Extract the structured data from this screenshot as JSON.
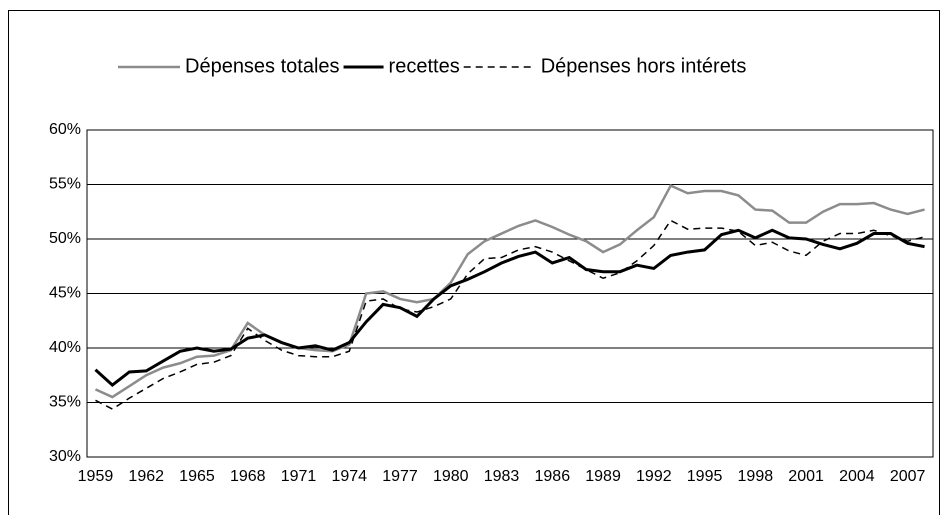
{
  "chart_data": {
    "type": "line",
    "categories": [
      "1959",
      null,
      null,
      "1962",
      null,
      null,
      "1965",
      null,
      null,
      "1968",
      null,
      null,
      "1971",
      null,
      null,
      "1974",
      null,
      null,
      "1977",
      null,
      null,
      "1980",
      null,
      null,
      "1983",
      null,
      null,
      "1986",
      null,
      null,
      "1989",
      null,
      null,
      "1992",
      null,
      null,
      "1995",
      null,
      null,
      "1998",
      null,
      null,
      "2001",
      null,
      null,
      "2004",
      null,
      null,
      "2007",
      null
    ],
    "series": [
      {
        "name": "Dépenses totales",
        "color": "#8c8c8c",
        "line_style": "solid",
        "values": [
          36.2,
          35.5,
          36.5,
          37.5,
          38.2,
          38.6,
          39.2,
          39.3,
          39.8,
          42.3,
          41.2,
          40.5,
          40.0,
          39.8,
          39.7,
          40.3,
          45.0,
          45.2,
          44.5,
          44.2,
          44.5,
          46.0,
          48.6,
          49.8,
          50.5,
          51.2,
          51.7,
          51.1,
          50.4,
          49.8,
          48.8,
          49.5,
          50.8,
          52.0,
          54.9,
          54.2,
          54.4,
          54.4,
          54.0,
          52.7,
          52.6,
          51.5,
          51.5,
          52.5,
          53.2,
          53.2,
          53.3,
          52.7,
          52.3,
          52.7
        ]
      },
      {
        "name": "recettes",
        "color": "#000000",
        "line_style": "solid",
        "values": [
          38.0,
          36.6,
          37.8,
          37.9,
          38.8,
          39.7,
          40.0,
          39.7,
          39.9,
          40.9,
          41.2,
          40.5,
          40.0,
          40.2,
          39.8,
          40.5,
          42.4,
          44.0,
          43.7,
          42.9,
          44.5,
          45.7,
          46.3,
          47.0,
          47.8,
          48.4,
          48.8,
          47.8,
          48.3,
          47.2,
          47.0,
          47.0,
          47.6,
          47.3,
          48.5,
          48.8,
          49.0,
          50.4,
          50.8,
          50.1,
          50.8,
          50.1,
          50.0,
          49.5,
          49.1,
          49.6,
          50.5,
          50.5,
          49.6,
          49.3
        ]
      },
      {
        "name": "Dépenses hors intérets",
        "color": "#000000",
        "line_style": "dashed",
        "values": [
          35.2,
          34.4,
          35.4,
          36.3,
          37.2,
          37.8,
          38.5,
          38.7,
          39.3,
          41.8,
          40.7,
          39.8,
          39.3,
          39.2,
          39.2,
          39.7,
          44.3,
          44.5,
          43.6,
          43.3,
          43.8,
          44.5,
          46.8,
          48.2,
          48.3,
          49.0,
          49.3,
          48.8,
          48.0,
          47.2,
          46.4,
          46.9,
          48.0,
          49.4,
          51.7,
          50.9,
          51.0,
          51.0,
          50.7,
          49.4,
          49.7,
          48.9,
          48.5,
          49.8,
          50.5,
          50.5,
          50.8,
          50.3,
          49.8,
          50.2
        ]
      }
    ],
    "ylim": [
      30,
      60
    ],
    "yticks": [
      {
        "value": 30,
        "label": "30%"
      },
      {
        "value": 35,
        "label": "35%"
      },
      {
        "value": 40,
        "label": "40%"
      },
      {
        "value": 45,
        "label": "45%"
      },
      {
        "value": 50,
        "label": "50%"
      },
      {
        "value": 55,
        "label": "55%"
      },
      {
        "value": 60,
        "label": "60%"
      }
    ],
    "grid": true,
    "legend": "top"
  }
}
